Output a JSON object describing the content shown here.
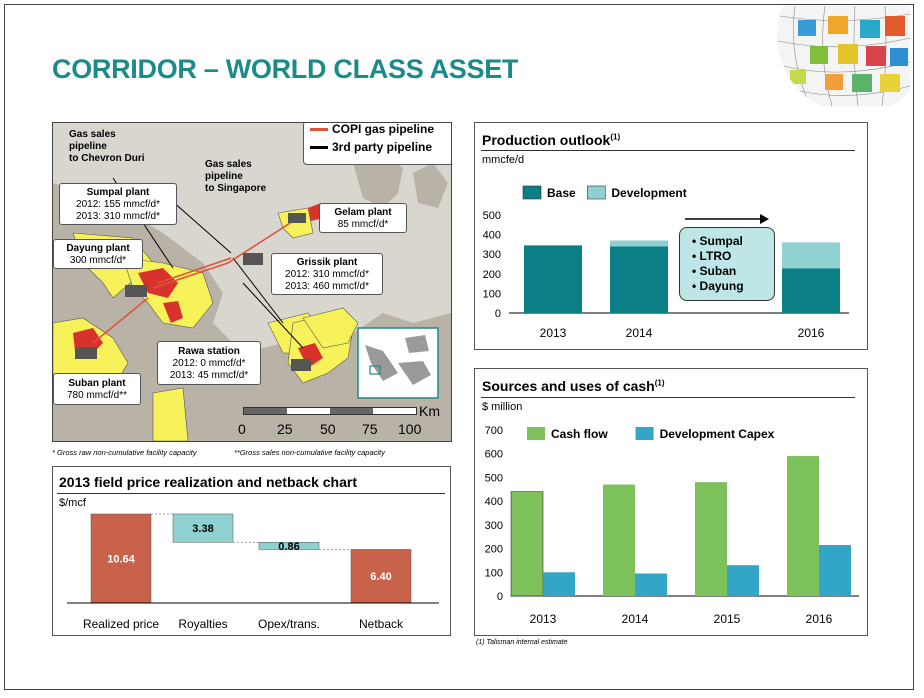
{
  "page": {
    "title": "CORRIDOR – WORLD CLASS ASSET"
  },
  "map": {
    "legend": {
      "copi": "COPI gas pipeline",
      "third_party": "3rd party pipeline"
    },
    "routes": {
      "chevron": [
        "Gas sales",
        "pipeline",
        "to Chevron Duri"
      ],
      "singapore": [
        "Gas sales",
        "pipeline",
        "to Singapore"
      ]
    },
    "plants": {
      "sumpal": {
        "name": "Sumpal plant",
        "line1": "2012: 155 mmcf/d*",
        "line2": "2013: 310 mmcf/d*"
      },
      "dayung": {
        "name": "Dayung plant",
        "line1": "300 mmcf/d*"
      },
      "gelam": {
        "name": "Gelam plant",
        "line1": "85 mmcf/d*"
      },
      "grissik": {
        "name": "Grissik plant",
        "line1": "2012: 310 mmcf/d*",
        "line2": "2013: 460 mmcf/d*"
      },
      "rawa": {
        "name": "Rawa station",
        "line1": "2012: 0 mmcf/d*",
        "line2": "2013: 45 mmcf/d*"
      },
      "suban": {
        "name": "Suban plant",
        "line1": "780 mmcf/d**"
      }
    },
    "scale": {
      "unit": "Km",
      "ticks": [
        "0",
        "25",
        "50",
        "75",
        "100"
      ]
    },
    "footnote_left": "* Gross raw non-cumulative facility capacity",
    "footnote_right": "**Gross sales non-cumulative facility capacity",
    "colors": {
      "land": "#b9b2a7",
      "block": "#f7f25a",
      "field": "#d8322d",
      "pipeline_red": "#e0523a"
    }
  },
  "chart_data": [
    {
      "id": "production",
      "type": "bar",
      "title": "Production outlook",
      "title_sup": "(1)",
      "ylabel": "mmcfe/d",
      "categories": [
        "2013",
        "2014",
        "2016"
      ],
      "series": [
        {
          "name": "Base",
          "values": [
            345,
            340,
            228
          ],
          "color": "#0b7f86"
        },
        {
          "name": "Development",
          "values": [
            0,
            30,
            132
          ],
          "color": "#8fd0d0"
        }
      ],
      "ylim": [
        0,
        500
      ],
      "yticks": [
        "0",
        "100",
        "200",
        "300",
        "400",
        "500"
      ],
      "callout": [
        "Sumpal",
        "LTRO",
        "Suban",
        "Dayung"
      ],
      "legend": "top-left"
    },
    {
      "id": "waterfall",
      "type": "bar",
      "title": "2013 field price realization and netback chart",
      "ylabel": "$/mcf",
      "categories": [
        "Realized price",
        "Royalties",
        "Opex/trans.",
        "Netback"
      ],
      "values": [
        10.64,
        3.38,
        0.86,
        6.4
      ],
      "labels": [
        "10.64",
        "3.38",
        "0.86",
        "6.40"
      ],
      "colors": {
        "total": "#c8624a",
        "step": "#8fd0d0"
      }
    },
    {
      "id": "cash",
      "type": "bar",
      "title": "Sources and uses of cash",
      "title_sup": "(1)",
      "ylabel": "$ million",
      "categories": [
        "2013",
        "2014",
        "2015",
        "2016"
      ],
      "series": [
        {
          "name": "Cash flow",
          "values": [
            440,
            470,
            480,
            590
          ],
          "color": "#7cc15a"
        },
        {
          "name": "Development Capex",
          "values": [
            100,
            95,
            130,
            215
          ],
          "color": "#33a6c8"
        }
      ],
      "ylim": [
        0,
        700
      ],
      "yticks": [
        "0",
        "100",
        "200",
        "300",
        "400",
        "500",
        "600",
        "700"
      ],
      "legend": "top-left"
    }
  ],
  "footnote_cash": "(1) Talisman internal estimate"
}
